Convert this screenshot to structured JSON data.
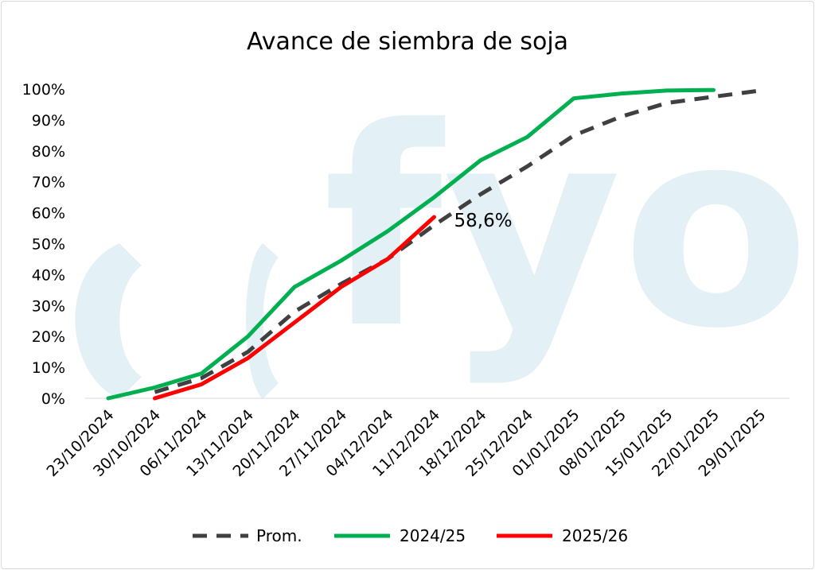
{
  "chart_data": {
    "type": "line",
    "title": "Avance de siembra de soja",
    "xlabel": "",
    "ylabel": "",
    "categories": [
      "23/10/2024",
      "30/10/2024",
      "06/11/2024",
      "13/11/2024",
      "20/11/2024",
      "27/11/2024",
      "04/12/2024",
      "11/12/2024",
      "18/12/2024",
      "25/12/2024",
      "01/01/2025",
      "08/01/2025",
      "15/01/2025",
      "22/01/2025",
      "29/01/2025"
    ],
    "yticks": [
      "0%",
      "10%",
      "20%",
      "30%",
      "40%",
      "50%",
      "60%",
      "70%",
      "80%",
      "90%",
      "100%"
    ],
    "ylim": [
      0,
      100
    ],
    "grid": false,
    "legend_position": "bottom",
    "series": [
      {
        "name": "Prom.",
        "color": "#404040",
        "dash": true,
        "values": [
          null,
          2,
          6.5,
          15,
          28,
          37,
          45,
          56,
          66,
          75,
          85,
          91,
          95.5,
          97.5,
          99.5
        ]
      },
      {
        "name": "2024/25",
        "color": "#00b050",
        "dash": false,
        "values": [
          0,
          3.5,
          8,
          20,
          36,
          44.5,
          54,
          65,
          77,
          84.5,
          97,
          98.5,
          99.5,
          99.7,
          null
        ]
      },
      {
        "name": "2025/26",
        "color": "#ff0000",
        "dash": false,
        "values": [
          null,
          0,
          4.5,
          13,
          24.5,
          36,
          45,
          58.6,
          null,
          null,
          null,
          null,
          null,
          null,
          null
        ]
      }
    ],
    "annotation": {
      "text": "58,6%",
      "series": "2025/26",
      "category": "11/12/2024"
    }
  },
  "watermark": {
    "text": "ofyo",
    "color": "#e3f0f5"
  }
}
